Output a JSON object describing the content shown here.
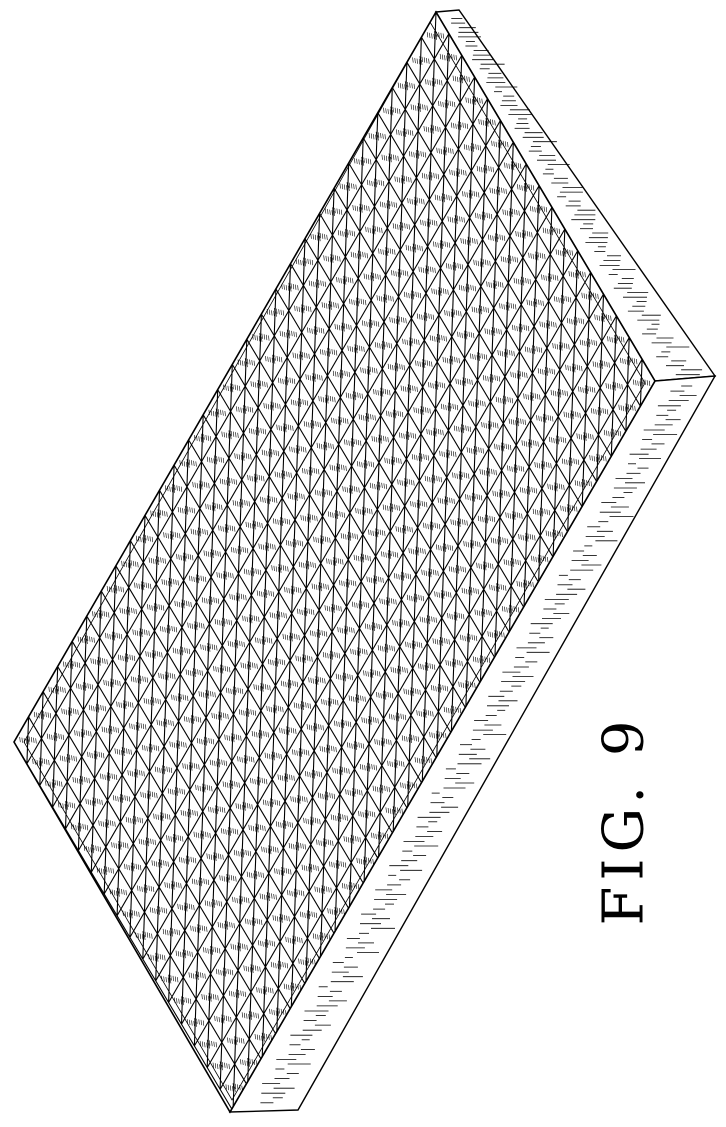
{
  "figure": {
    "label": "FIG. 9",
    "subject": "mattress-pad",
    "pattern": "triangular-diamond-lattice",
    "line_color": "#000000",
    "background": "#ffffff",
    "side_hatch": "dashes"
  }
}
